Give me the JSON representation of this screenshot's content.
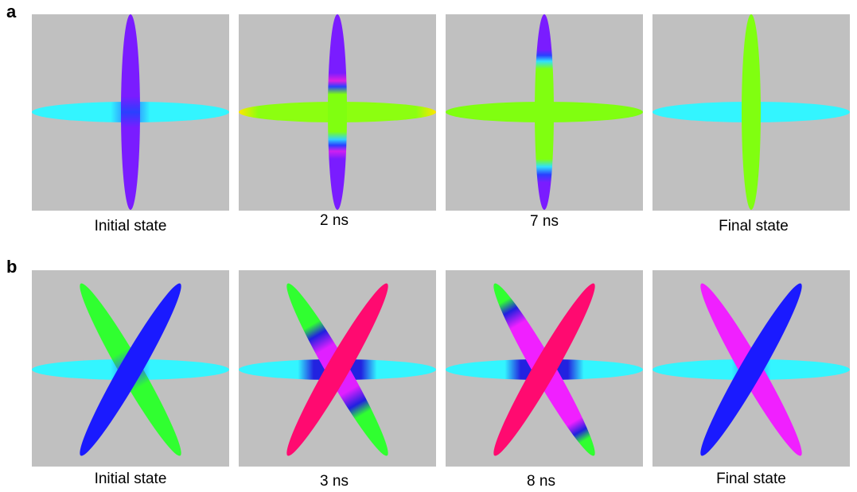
{
  "panel_labels": [
    "a",
    "b"
  ],
  "rows": [
    {
      "captions": [
        "Initial state",
        "2 ns",
        "7 ns",
        "Final state"
      ]
    },
    {
      "captions": [
        "Initial state",
        "3 ns",
        "8 ns",
        "Final state"
      ]
    }
  ]
}
